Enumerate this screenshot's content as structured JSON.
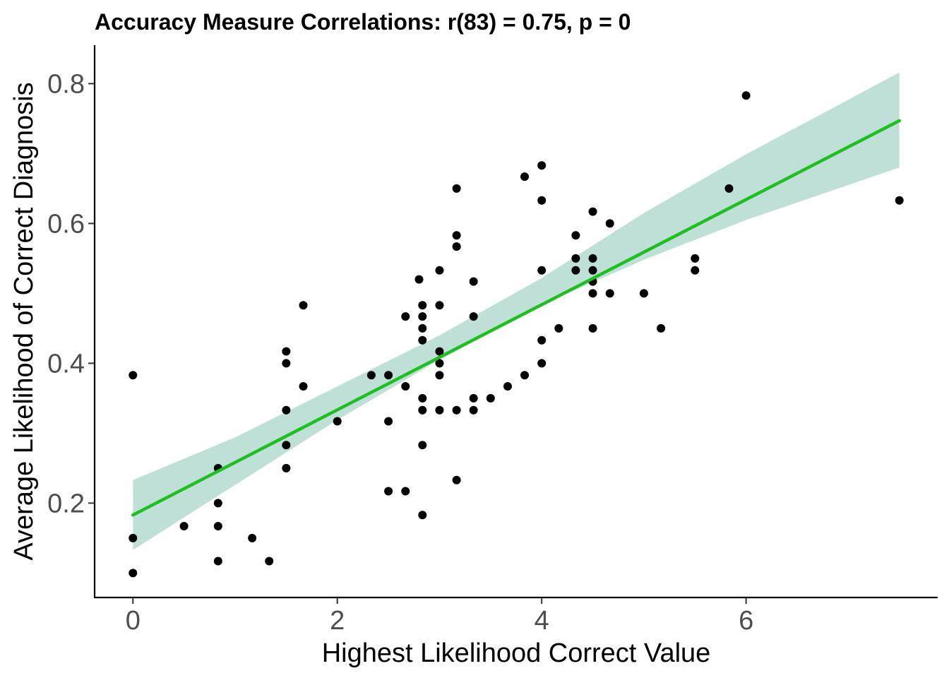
{
  "chart_data": {
    "type": "scatter",
    "title": "Accuracy Measure Correlations: r(83) = 0.75, p = 0",
    "xlabel": "Highest Likelihood Correct Value",
    "ylabel": "Average Likelihood of Correct Diagnosis",
    "xlim": [
      -0.375,
      7.875
    ],
    "ylim": [
      0.065,
      0.855
    ],
    "x_ticks": [
      0,
      2,
      4,
      6
    ],
    "y_ticks": [
      0.2,
      0.4,
      0.6,
      0.8
    ],
    "x_tick_labels": [
      "0",
      "2",
      "4",
      "6"
    ],
    "y_tick_labels": [
      "0.2",
      "0.4",
      "0.6",
      "0.8"
    ],
    "grid": false,
    "legend": "none",
    "point_color": "#000000",
    "fit": {
      "method": "linear",
      "x": [
        0,
        7.5
      ],
      "y": [
        0.183,
        0.747
      ],
      "line_color": "#1fbf1f",
      "band_color": "#a8d5c9",
      "ci_lower": [
        [
          0,
          0.133
        ],
        [
          1,
          0.226
        ],
        [
          2,
          0.319
        ],
        [
          3,
          0.405
        ],
        [
          4,
          0.484
        ],
        [
          5,
          0.548
        ],
        [
          6,
          0.605
        ],
        [
          7.5,
          0.68
        ]
      ],
      "ci_upper": [
        [
          0,
          0.233
        ],
        [
          1,
          0.294
        ],
        [
          2,
          0.367
        ],
        [
          3,
          0.44
        ],
        [
          4,
          0.522
        ],
        [
          5,
          0.615
        ],
        [
          6,
          0.699
        ],
        [
          7.5,
          0.816
        ]
      ]
    },
    "points": [
      {
        "x": 0,
        "y": 0.383
      },
      {
        "x": 0,
        "y": 0.15
      },
      {
        "x": 0,
        "y": 0.1
      },
      {
        "x": 0.5,
        "y": 0.167
      },
      {
        "x": 0.833,
        "y": 0.25
      },
      {
        "x": 0.833,
        "y": 0.2
      },
      {
        "x": 0.833,
        "y": 0.167
      },
      {
        "x": 0.833,
        "y": 0.117
      },
      {
        "x": 1.167,
        "y": 0.15
      },
      {
        "x": 1.333,
        "y": 0.117
      },
      {
        "x": 1.5,
        "y": 0.417
      },
      {
        "x": 1.5,
        "y": 0.4
      },
      {
        "x": 1.5,
        "y": 0.333
      },
      {
        "x": 1.5,
        "y": 0.283
      },
      {
        "x": 1.5,
        "y": 0.25
      },
      {
        "x": 1.667,
        "y": 0.483
      },
      {
        "x": 1.667,
        "y": 0.367
      },
      {
        "x": 2,
        "y": 0.317
      },
      {
        "x": 2.333,
        "y": 0.383
      },
      {
        "x": 2.5,
        "y": 0.383
      },
      {
        "x": 2.5,
        "y": 0.317
      },
      {
        "x": 2.5,
        "y": 0.217
      },
      {
        "x": 2.667,
        "y": 0.467
      },
      {
        "x": 2.667,
        "y": 0.367
      },
      {
        "x": 2.667,
        "y": 0.217
      },
      {
        "x": 2.8,
        "y": 0.52
      },
      {
        "x": 2.833,
        "y": 0.483
      },
      {
        "x": 2.833,
        "y": 0.467
      },
      {
        "x": 2.833,
        "y": 0.45
      },
      {
        "x": 2.833,
        "y": 0.433
      },
      {
        "x": 2.833,
        "y": 0.35
      },
      {
        "x": 2.833,
        "y": 0.333
      },
      {
        "x": 2.833,
        "y": 0.283
      },
      {
        "x": 2.833,
        "y": 0.183
      },
      {
        "x": 3,
        "y": 0.533
      },
      {
        "x": 3,
        "y": 0.483
      },
      {
        "x": 3,
        "y": 0.417
      },
      {
        "x": 3,
        "y": 0.4
      },
      {
        "x": 3,
        "y": 0.383
      },
      {
        "x": 3,
        "y": 0.333
      },
      {
        "x": 3.167,
        "y": 0.65
      },
      {
        "x": 3.167,
        "y": 0.583
      },
      {
        "x": 3.167,
        "y": 0.567
      },
      {
        "x": 3.167,
        "y": 0.333
      },
      {
        "x": 3.167,
        "y": 0.233
      },
      {
        "x": 3.333,
        "y": 0.517
      },
      {
        "x": 3.333,
        "y": 0.467
      },
      {
        "x": 3.333,
        "y": 0.35
      },
      {
        "x": 3.333,
        "y": 0.333
      },
      {
        "x": 3.5,
        "y": 0.35
      },
      {
        "x": 3.667,
        "y": 0.367
      },
      {
        "x": 3.833,
        "y": 0.667
      },
      {
        "x": 3.833,
        "y": 0.383
      },
      {
        "x": 4,
        "y": 0.683
      },
      {
        "x": 4,
        "y": 0.633
      },
      {
        "x": 4,
        "y": 0.533
      },
      {
        "x": 4,
        "y": 0.433
      },
      {
        "x": 4,
        "y": 0.4
      },
      {
        "x": 4.167,
        "y": 0.45
      },
      {
        "x": 4.333,
        "y": 0.583
      },
      {
        "x": 4.333,
        "y": 0.55
      },
      {
        "x": 4.333,
        "y": 0.533
      },
      {
        "x": 4.5,
        "y": 0.617
      },
      {
        "x": 4.5,
        "y": 0.55
      },
      {
        "x": 4.5,
        "y": 0.533
      },
      {
        "x": 4.5,
        "y": 0.517
      },
      {
        "x": 4.5,
        "y": 0.5
      },
      {
        "x": 4.5,
        "y": 0.45
      },
      {
        "x": 4.667,
        "y": 0.6
      },
      {
        "x": 4.667,
        "y": 0.5
      },
      {
        "x": 5,
        "y": 0.5
      },
      {
        "x": 5.167,
        "y": 0.45
      },
      {
        "x": 5.5,
        "y": 0.55
      },
      {
        "x": 5.5,
        "y": 0.533
      },
      {
        "x": 5.833,
        "y": 0.65
      },
      {
        "x": 6,
        "y": 0.783
      },
      {
        "x": 7.5,
        "y": 0.633
      }
    ]
  }
}
